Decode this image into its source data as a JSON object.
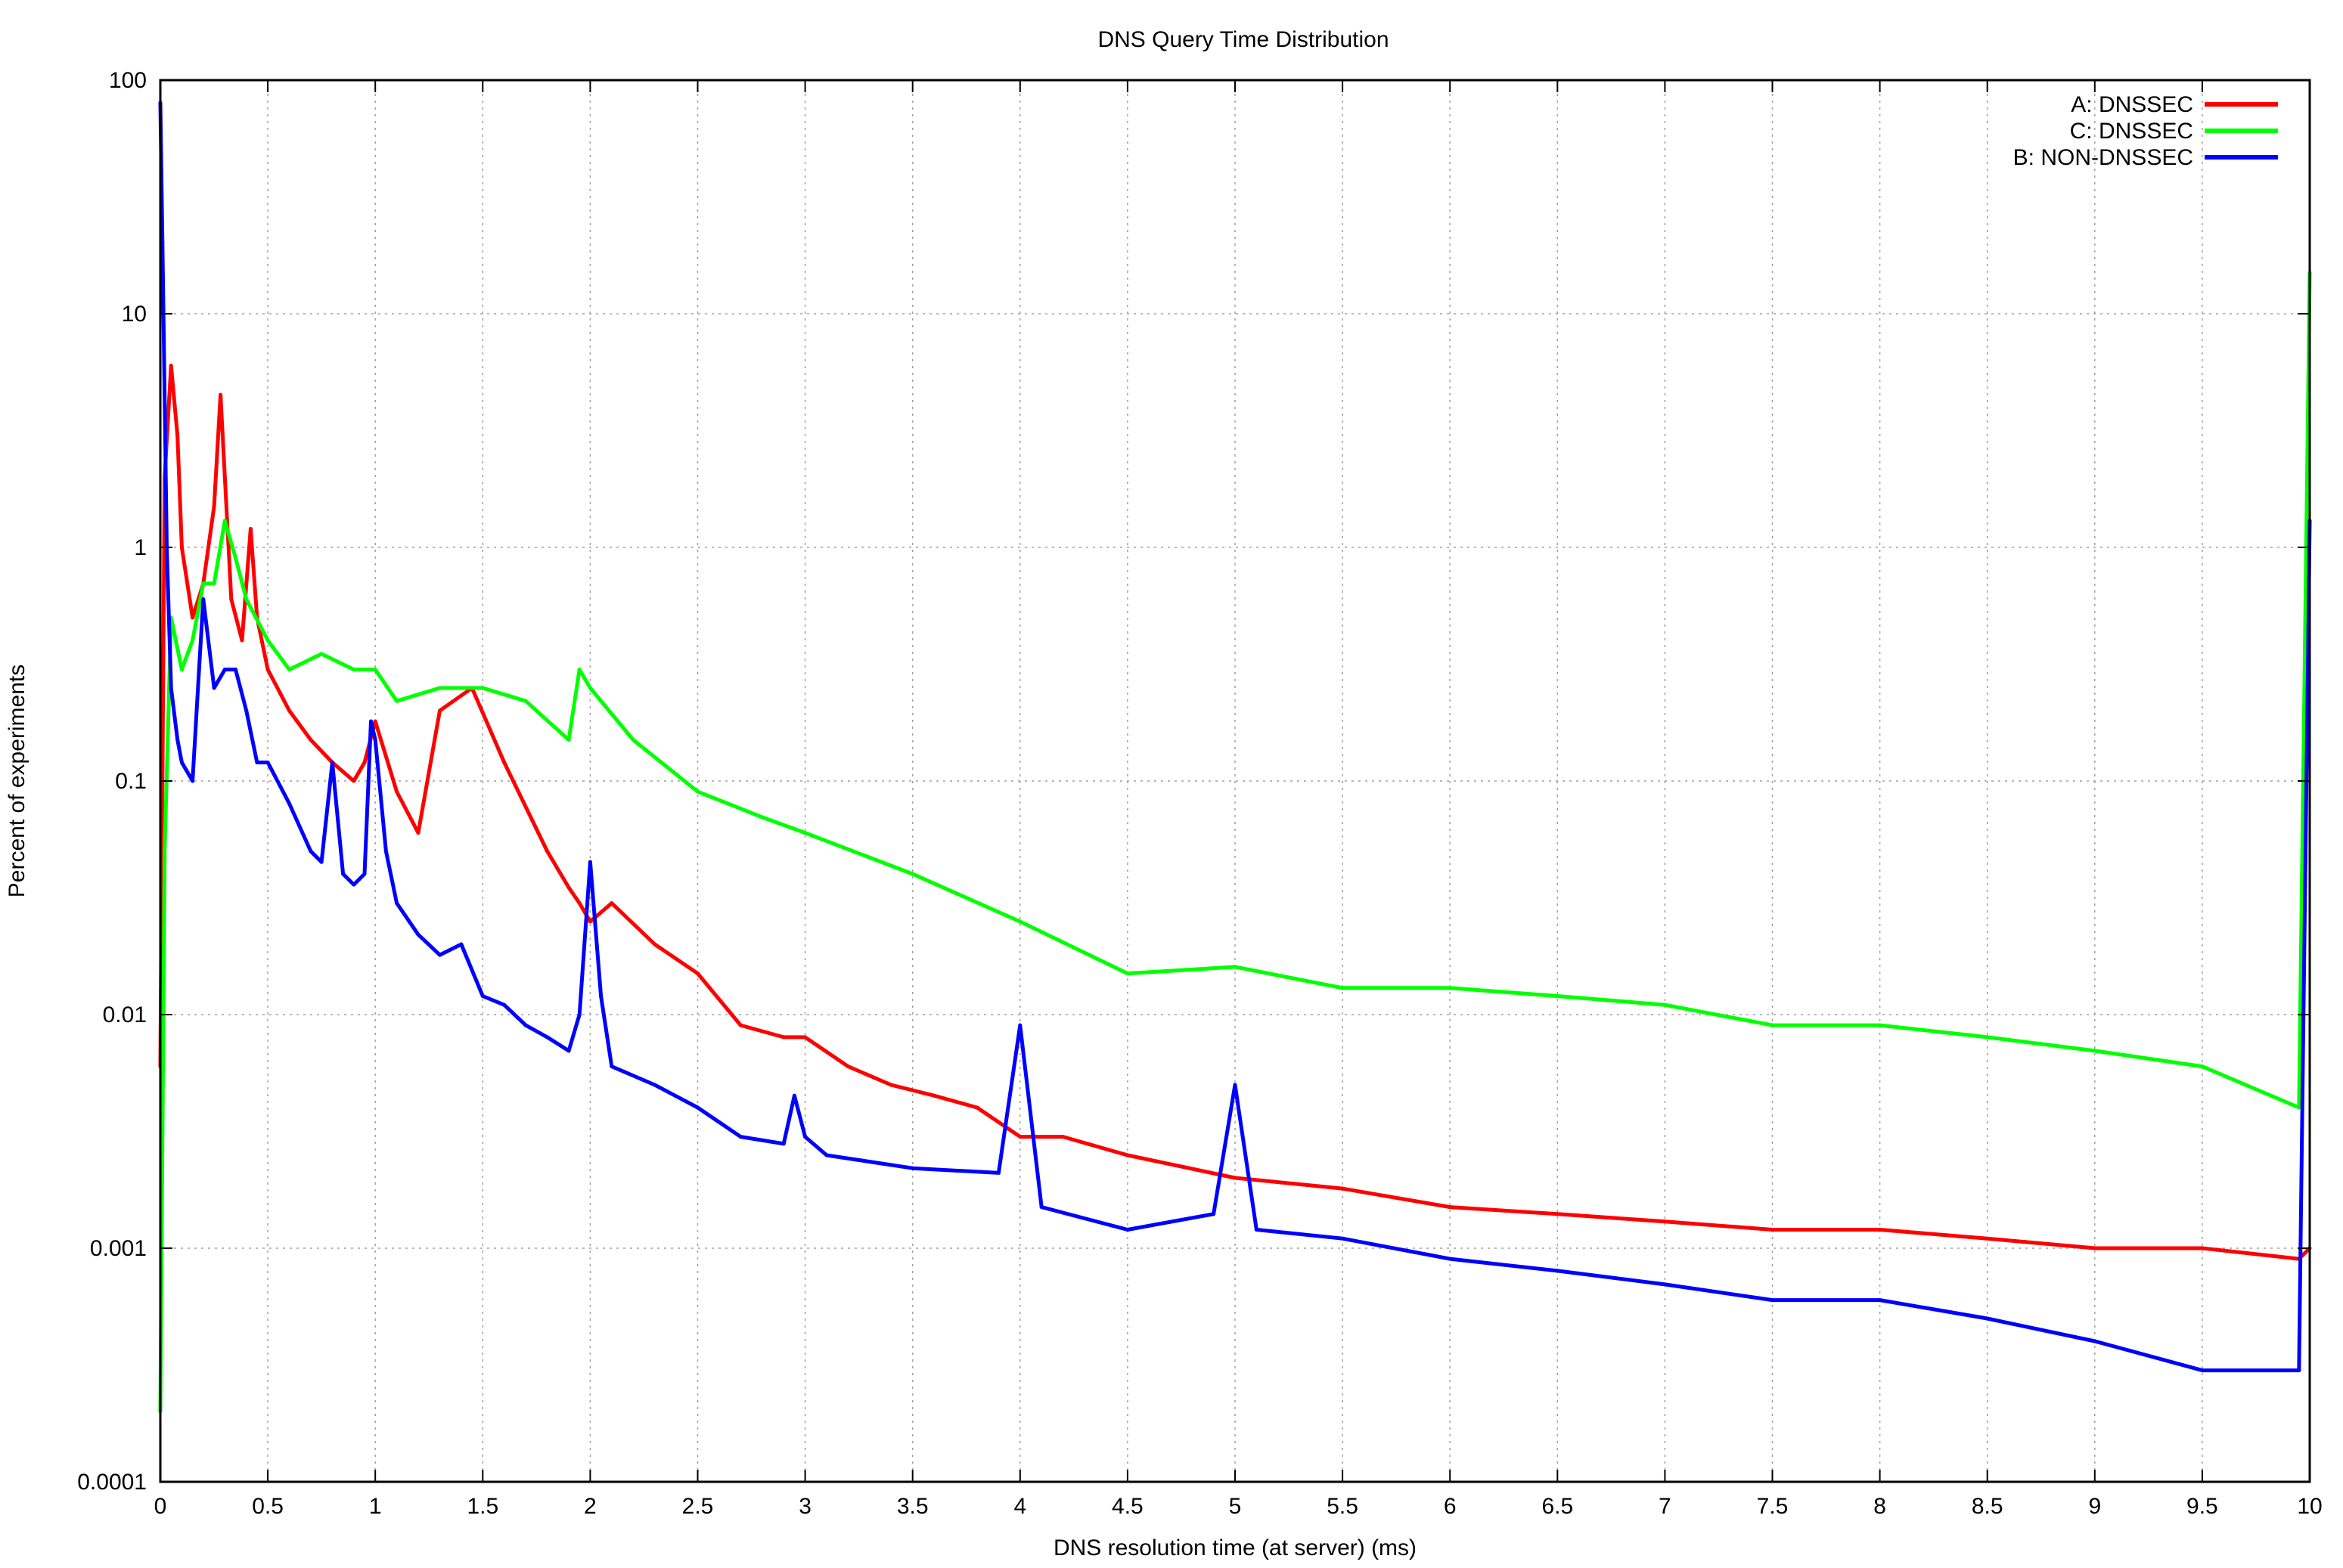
{
  "chart_data": {
    "type": "line",
    "title": "DNS Query Time Distribution",
    "xlabel": "DNS resolution time (at server) (ms)",
    "ylabel": "Percent of experiments",
    "xlim": [
      0,
      10
    ],
    "ylim": [
      0.0001,
      100
    ],
    "yscale": "log",
    "grid": true,
    "legend_position": "top-right",
    "x_ticks": [
      "0",
      "0.5",
      "1",
      "1.5",
      "2",
      "2.5",
      "3",
      "3.5",
      "4",
      "4.5",
      "5",
      "5.5",
      "6",
      "6.5",
      "7",
      "7.5",
      "8",
      "8.5",
      "9",
      "9.5",
      "10"
    ],
    "y_ticks": [
      "0.0001",
      "0.001",
      "0.01",
      "0.1",
      "1",
      "10",
      "100"
    ],
    "series": [
      {
        "name": "A: DNSSEC",
        "color": "#ff0000",
        "x": [
          0,
          0.02,
          0.05,
          0.08,
          0.1,
          0.15,
          0.2,
          0.25,
          0.28,
          0.3,
          0.33,
          0.38,
          0.42,
          0.45,
          0.5,
          0.6,
          0.7,
          0.8,
          0.9,
          0.95,
          1.0,
          1.1,
          1.2,
          1.3,
          1.45,
          1.6,
          1.8,
          1.9,
          1.95,
          2.0,
          2.1,
          2.3,
          2.5,
          2.7,
          2.9,
          3.0,
          3.2,
          3.4,
          3.6,
          3.8,
          4.0,
          4.2,
          4.5,
          5.0,
          5.5,
          6.0,
          6.5,
          7.0,
          7.5,
          8.0,
          8.5,
          9.0,
          9.5,
          9.95,
          10.0
        ],
        "y": [
          0.006,
          2.0,
          6.0,
          3.0,
          1.0,
          0.5,
          0.7,
          1.5,
          4.5,
          2.0,
          0.6,
          0.4,
          1.2,
          0.5,
          0.3,
          0.2,
          0.15,
          0.12,
          0.1,
          0.12,
          0.18,
          0.09,
          0.06,
          0.2,
          0.25,
          0.12,
          0.05,
          0.035,
          0.03,
          0.025,
          0.03,
          0.02,
          0.015,
          0.009,
          0.008,
          0.008,
          0.006,
          0.005,
          0.0045,
          0.004,
          0.003,
          0.003,
          0.0025,
          0.002,
          0.0018,
          0.0015,
          0.0014,
          0.0013,
          0.0012,
          0.0012,
          0.0011,
          0.001,
          0.001,
          0.0009,
          0.001
        ]
      },
      {
        "name": "C: DNSSEC",
        "color": "#00ff00",
        "x": [
          0,
          0.02,
          0.05,
          0.1,
          0.15,
          0.2,
          0.25,
          0.3,
          0.35,
          0.4,
          0.5,
          0.6,
          0.75,
          0.9,
          1.0,
          1.1,
          1.3,
          1.5,
          1.7,
          1.9,
          1.95,
          2.0,
          2.2,
          2.5,
          2.8,
          3.0,
          3.5,
          4.0,
          4.5,
          5.0,
          5.5,
          6.0,
          6.5,
          7.0,
          7.5,
          8.0,
          8.5,
          9.0,
          9.5,
          9.95,
          10.0
        ],
        "y": [
          0.0002,
          0.05,
          0.5,
          0.3,
          0.4,
          0.7,
          0.7,
          1.3,
          0.9,
          0.6,
          0.4,
          0.3,
          0.35,
          0.3,
          0.3,
          0.22,
          0.25,
          0.25,
          0.22,
          0.15,
          0.3,
          0.25,
          0.15,
          0.09,
          0.07,
          0.06,
          0.04,
          0.025,
          0.015,
          0.016,
          0.013,
          0.013,
          0.012,
          0.011,
          0.009,
          0.009,
          0.008,
          0.007,
          0.006,
          0.004,
          15.0
        ]
      },
      {
        "name": "B: NON-DNSSEC",
        "color": "#0000ff",
        "x": [
          0,
          0.01,
          0.03,
          0.05,
          0.08,
          0.1,
          0.15,
          0.18,
          0.2,
          0.25,
          0.3,
          0.35,
          0.4,
          0.45,
          0.5,
          0.6,
          0.7,
          0.75,
          0.8,
          0.85,
          0.9,
          0.95,
          0.98,
          1.0,
          1.05,
          1.1,
          1.2,
          1.3,
          1.4,
          1.5,
          1.6,
          1.7,
          1.8,
          1.9,
          1.95,
          2.0,
          2.05,
          2.1,
          2.3,
          2.5,
          2.7,
          2.9,
          2.95,
          3.0,
          3.1,
          3.5,
          3.9,
          4.0,
          4.1,
          4.5,
          4.9,
          5.0,
          5.1,
          5.5,
          6.0,
          6.5,
          7.0,
          7.5,
          8.0,
          8.5,
          9.0,
          9.5,
          9.95,
          10.0
        ],
        "y": [
          80.0,
          20.0,
          1.0,
          0.25,
          0.15,
          0.12,
          0.1,
          0.3,
          0.6,
          0.25,
          0.3,
          0.3,
          0.2,
          0.12,
          0.12,
          0.08,
          0.05,
          0.045,
          0.12,
          0.04,
          0.036,
          0.04,
          0.18,
          0.15,
          0.05,
          0.03,
          0.022,
          0.018,
          0.02,
          0.012,
          0.011,
          0.009,
          0.008,
          0.007,
          0.01,
          0.045,
          0.012,
          0.006,
          0.005,
          0.004,
          0.003,
          0.0028,
          0.0045,
          0.003,
          0.0025,
          0.0022,
          0.0021,
          0.009,
          0.0015,
          0.0012,
          0.0014,
          0.005,
          0.0012,
          0.0011,
          0.0009,
          0.0008,
          0.0007,
          0.0006,
          0.0006,
          0.0005,
          0.0004,
          0.0003,
          0.0003,
          1.3
        ]
      }
    ]
  }
}
